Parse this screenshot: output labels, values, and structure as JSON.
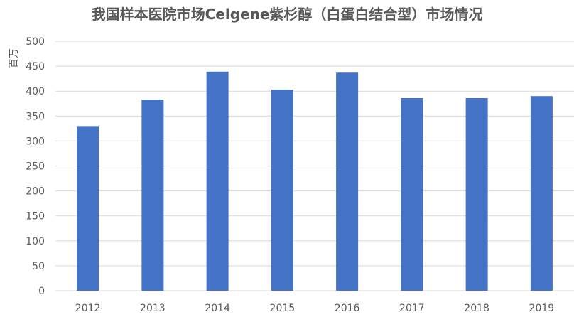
{
  "chart_data": {
    "type": "bar",
    "title": "我国样本医院市场Celgene紫杉醇（白蛋白结合型）市场情况",
    "xlabel": "",
    "ylabel": "百万",
    "categories": [
      "2012",
      "2013",
      "2014",
      "2015",
      "2016",
      "2017",
      "2018",
      "2019"
    ],
    "values": [
      330,
      383,
      439,
      403,
      437,
      386,
      386,
      390
    ],
    "ylim": [
      0,
      500
    ],
    "yticks": [
      0,
      50,
      100,
      150,
      200,
      250,
      300,
      350,
      400,
      450,
      500
    ],
    "grid": true,
    "legend": "none",
    "bar_color": "#4472C4",
    "grid_color": "#D9D9D9",
    "text_color": "#595959"
  }
}
